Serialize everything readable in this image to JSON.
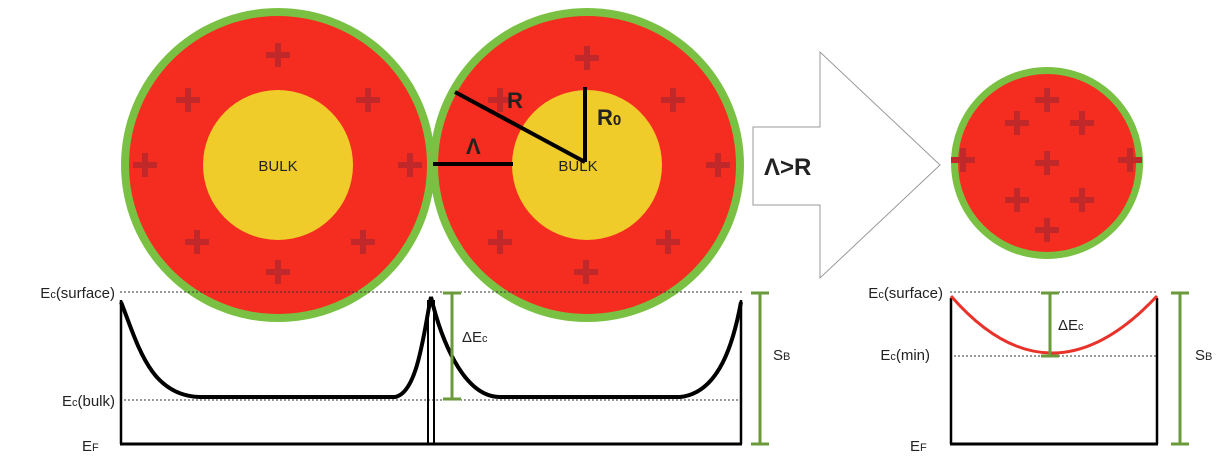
{
  "labels": {
    "bulk_left": "BULK",
    "bulk_right": "BULK",
    "radius": "R",
    "core_radius": {
      "main": "R",
      "sub": "0"
    },
    "debye_length": "Λ",
    "condition": "Λ>R",
    "left_band": {
      "ec_surface": {
        "main": "E",
        "sub": "c",
        "rest": "(surface)"
      },
      "ec_bulk": {
        "main": "E",
        "sub": "c",
        "rest": "(bulk)"
      },
      "ef": {
        "main": "E",
        "sub": "F"
      },
      "delta_ec": {
        "main": "ΔE",
        "sub": "c"
      },
      "sb": {
        "main": "S",
        "sub": "B"
      }
    },
    "right_band": {
      "ec_surface": {
        "main": "E",
        "sub": "c",
        "rest": "(surface)"
      },
      "ec_min": {
        "main": "E",
        "sub": "c",
        "rest": "(min)"
      },
      "ef": {
        "main": "E",
        "sub": "F"
      },
      "delta_ec": {
        "main": "ΔE",
        "sub": "c"
      },
      "sb": {
        "main": "S",
        "sub": "B"
      }
    }
  }
}
